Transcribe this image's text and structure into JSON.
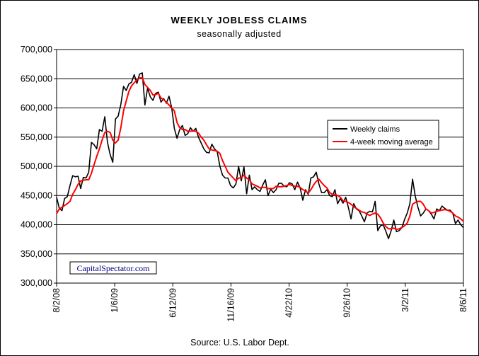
{
  "chart_data": {
    "type": "line",
    "title": "WEEKLY JOBLESS CLAIMS",
    "subtitle": "seasonally adjusted",
    "source": "Source: U.S. Labor Dept.",
    "watermark": "CapitalSpectator.com",
    "ylim": [
      300000,
      700000
    ],
    "y_ticks": [
      "300,000",
      "350,000",
      "400,000",
      "450,000",
      "500,000",
      "550,000",
      "600,000",
      "650,000",
      "700,000"
    ],
    "x_ticks": [
      "8/2/08",
      "1/6/09",
      "6/12/09",
      "11/16/09",
      "4/22/10",
      "9/26/10",
      "3/2/11",
      "8/6/11"
    ],
    "grid": "horizontal",
    "legend_position": "right",
    "colors": {
      "weekly": "#000000",
      "moving_average": "#ff0000"
    },
    "series": [
      {
        "name": "Weekly claims",
        "values": [
          447000,
          428000,
          424000,
          445000,
          448000,
          467000,
          484000,
          482000,
          483000,
          462000,
          481000,
          480000,
          490000,
          541000,
          537000,
          530000,
          563000,
          560000,
          585000,
          541000,
          520000,
          507000,
          581000,
          586000,
          606000,
          637000,
          630000,
          641000,
          644000,
          657000,
          642000,
          658000,
          660000,
          605000,
          634000,
          619000,
          613000,
          625000,
          627000,
          610000,
          616000,
          608000,
          620000,
          600000,
          565000,
          548000,
          563000,
          570000,
          553000,
          556000,
          566000,
          560000,
          565000,
          550000,
          540000,
          530000,
          524000,
          523000,
          538000,
          530000,
          525000,
          500000,
          485000,
          480000,
          480000,
          467000,
          463000,
          470000,
          500000,
          475000,
          499000,
          453000,
          485000,
          460000,
          465000,
          460000,
          457000,
          468000,
          477000,
          450000,
          461000,
          455000,
          460000,
          471000,
          471000,
          466000,
          465000,
          472000,
          470000,
          460000,
          473000,
          463000,
          442000,
          460000,
          452000,
          480000,
          482000,
          490000,
          470000,
          455000,
          455000,
          460000,
          450000,
          448000,
          460000,
          436000,
          445000,
          437000,
          447000,
          430000,
          410000,
          436000,
          427000,
          424000,
          415000,
          405000,
          420000,
          423000,
          422000,
          440000,
          390000,
          398000,
          400000,
          389000,
          376000,
          390000,
          408000,
          388000,
          390000,
          395000,
          409000,
          420000,
          436000,
          478000,
          449000,
          430000,
          415000,
          420000,
          427000,
          424000,
          418000,
          410000,
          427000,
          424000,
          432000,
          428000,
          425000,
          425000,
          420000,
          402000,
          408000,
          400000,
          395000
        ]
      },
      {
        "name": "4-week moving average",
        "values": [
          419000,
          427000,
          430000,
          433000,
          436000,
          440000,
          452000,
          460000,
          469000,
          475000,
          476000,
          477000,
          477000,
          488000,
          503000,
          517000,
          530000,
          545000,
          558000,
          560000,
          558000,
          545000,
          540000,
          545000,
          566000,
          595000,
          612000,
          628000,
          638000,
          643000,
          648000,
          651000,
          652000,
          640000,
          635000,
          630000,
          622000,
          623000,
          625000,
          617000,
          614000,
          610000,
          605000,
          600000,
          595000,
          575000,
          566000,
          563000,
          563000,
          560000,
          560000,
          561000,
          560000,
          557000,
          550000,
          545000,
          537000,
          530000,
          528000,
          527000,
          526000,
          522000,
          510000,
          500000,
          490000,
          485000,
          480000,
          475000,
          480000,
          480000,
          485000,
          480000,
          477000,
          470000,
          468000,
          466000,
          463000,
          464000,
          464000,
          462000,
          462000,
          462000,
          466000,
          465000,
          465000,
          466000,
          467000,
          469000,
          467000,
          466000,
          466000,
          464000,
          460000,
          458000,
          454000,
          460000,
          468000,
          474000,
          478000,
          472000,
          467000,
          463000,
          455000,
          452000,
          452000,
          450000,
          447000,
          441000,
          440000,
          438000,
          435000,
          431000,
          428000,
          425000,
          422000,
          421000,
          418000,
          416000,
          418000,
          420000,
          418000,
          412000,
          403000,
          397000,
          393000,
          393000,
          394000,
          392000,
          393000,
          395000,
          398000,
          403000,
          415000,
          435000,
          438000,
          440000,
          440000,
          435000,
          427000,
          424000,
          420000,
          421000,
          423000,
          424000,
          425000,
          426000,
          425000,
          423000,
          420000,
          415000,
          413000,
          410000,
          406000
        ]
      }
    ]
  }
}
